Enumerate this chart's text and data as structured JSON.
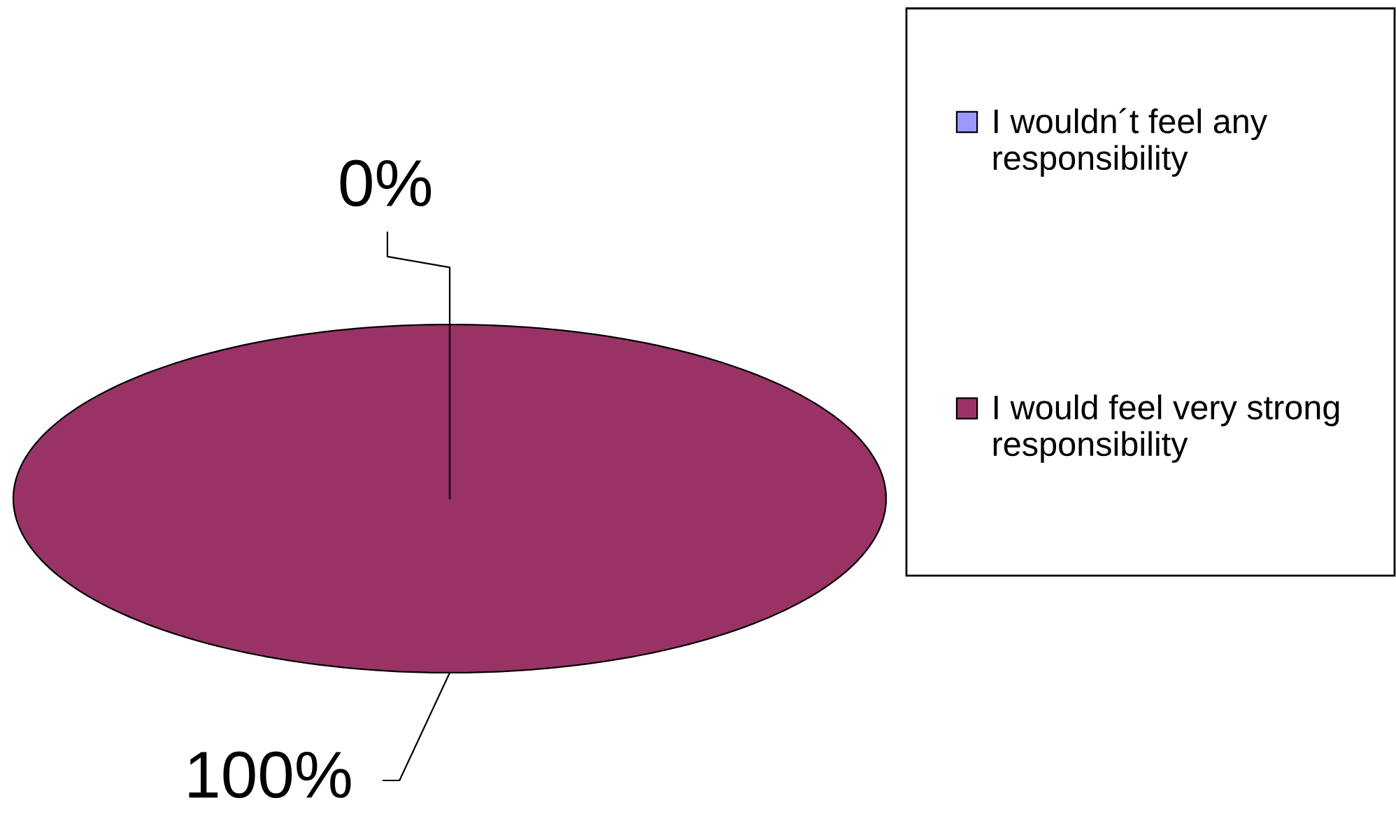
{
  "chart_data": {
    "type": "pie",
    "categories": [
      "I wouldn´t feel any responsibility",
      "I would feel very strong responsibility"
    ],
    "values": [
      0,
      100
    ],
    "colors": [
      "#9999ff",
      "#993366"
    ],
    "value_labels": [
      "0%",
      "100%"
    ],
    "legend": "right"
  }
}
